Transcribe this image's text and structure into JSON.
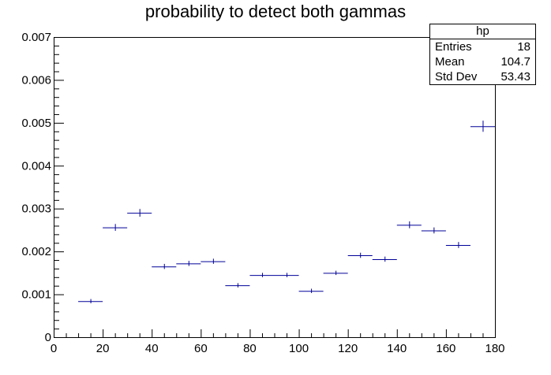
{
  "chart_data": {
    "type": "scatter",
    "title": "probability to detect both gammas",
    "xlabel": "",
    "ylabel": "",
    "xlim": [
      0,
      180
    ],
    "ylim": [
      0,
      0.007
    ],
    "bin_width": 10,
    "x_ticks": [
      0,
      20,
      40,
      60,
      80,
      100,
      120,
      140,
      160,
      180
    ],
    "x_tick_labels": [
      "0",
      "20",
      "40",
      "60",
      "80",
      "100",
      "120",
      "140",
      "160",
      "180"
    ],
    "y_ticks": [
      0,
      0.001,
      0.002,
      0.003,
      0.004,
      0.005,
      0.006,
      0.007
    ],
    "y_tick_labels": [
      "0",
      "0.001",
      "0.002",
      "0.003",
      "0.004",
      "0.005",
      "0.006",
      "0.007"
    ],
    "series": [
      {
        "color": "#000099",
        "x": [
          15,
          25,
          35,
          45,
          55,
          65,
          75,
          85,
          95,
          105,
          115,
          125,
          135,
          145,
          155,
          165,
          175
        ],
        "values": [
          0.00084,
          0.00256,
          0.0029,
          0.00165,
          0.00172,
          0.00177,
          0.00121,
          0.00145,
          0.00145,
          0.00108,
          0.0015,
          0.00191,
          0.00182,
          0.00262,
          0.00249,
          0.00215,
          0.00492
        ],
        "errors": [
          5e-05,
          8e-05,
          9e-05,
          6e-05,
          6e-05,
          6e-05,
          5e-05,
          5e-05,
          5e-05,
          5e-05,
          5e-05,
          6e-05,
          6e-05,
          8e-05,
          7e-05,
          7e-05,
          0.00013
        ]
      }
    ],
    "legend": "none",
    "grid": false
  },
  "stats": {
    "name": "hp",
    "entries_label": "Entries",
    "entries_value": "18",
    "mean_label": "Mean",
    "mean_value": "104.7",
    "stddev_label": "Std Dev",
    "stddev_value": "53.43"
  }
}
